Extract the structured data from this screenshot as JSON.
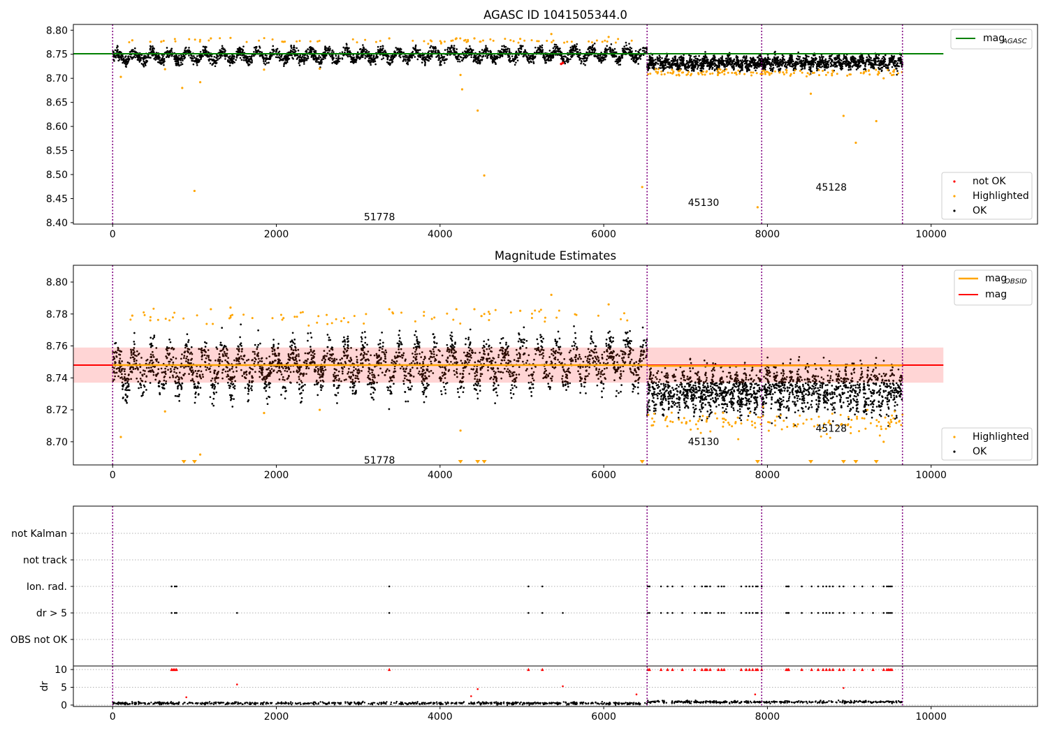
{
  "figure": {
    "title_top": "AGASC ID 1041505344.0",
    "title_middle": "Magnitude Estimates"
  },
  "chart_data": [
    {
      "type": "scatter",
      "title": "AGASC ID 1041505344.0",
      "xlabel": "",
      "ylabel": "",
      "xlim": [
        -480,
        11300
      ],
      "ylim": [
        8.397,
        8.812
      ],
      "xticks": [
        0,
        2000,
        4000,
        6000,
        8000,
        10000
      ],
      "yticks": [
        8.4,
        8.45,
        8.5,
        8.55,
        8.6,
        8.65,
        8.7,
        8.75,
        8.8
      ],
      "grid": false,
      "reference_line": {
        "name": "mag_AGASC",
        "label": "mag",
        "subscript": "AGASC",
        "y": 8.751,
        "x_range": [
          -480,
          10150
        ],
        "color": "#008000"
      },
      "obs_boundaries": [
        0,
        6530,
        7930,
        9650
      ],
      "obs_labels": [
        {
          "text": "51778",
          "x": 3260,
          "y": 8.412
        },
        {
          "text": "45130",
          "x": 7220,
          "y": 8.442
        },
        {
          "text": "45128",
          "x": 8780,
          "y": 8.474
        }
      ],
      "legend": {
        "position": "lower-right",
        "entries": [
          {
            "label": "not OK",
            "color": "#ff0000"
          },
          {
            "label": "Highlighted",
            "color": "#ffa500"
          },
          {
            "label": "OK",
            "color": "#000000"
          }
        ]
      },
      "top_legend": {
        "position": "upper-right"
      },
      "series": [
        {
          "name": "OK",
          "color": "#000000",
          "segments": [
            {
              "x_range": [
                0,
                6530
              ],
              "center": 8.745,
              "amp": 0.012,
              "spread": 0.0075,
              "period": 215,
              "n": 2600,
              "trend": 8.5e-07
            },
            {
              "x_range": [
                6530,
                7930
              ],
              "center": 8.732,
              "amp": 0.007,
              "spread": 0.008,
              "period": 95,
              "n": 850,
              "trend": 0
            },
            {
              "x_range": [
                7930,
                9650
              ],
              "center": 8.733,
              "amp": 0.008,
              "spread": 0.008,
              "period": 95,
              "n": 900,
              "trend": 0
            }
          ]
        },
        {
          "name": "Highlighted",
          "color": "#ffa500",
          "points": [
            [
              100,
              8.703
            ],
            [
              850,
              8.68
            ],
            [
              1000,
              8.466
            ],
            [
              1070,
              8.692
            ],
            [
              4250,
              8.707
            ],
            [
              4270,
              8.677
            ],
            [
              4460,
              8.633
            ],
            [
              4540,
              8.498
            ],
            [
              6470,
              8.474
            ],
            [
              7880,
              8.432
            ],
            [
              8530,
              8.668
            ],
            [
              8930,
              8.622
            ],
            [
              9080,
              8.566
            ],
            [
              9330,
              8.611
            ],
            [
              9420,
              8.7
            ],
            [
              640,
              8.719
            ],
            [
              1850,
              8.718
            ],
            [
              2530,
              8.72
            ],
            [
              3380,
              8.783
            ],
            [
              5360,
              8.792
            ],
            [
              6060,
              8.786
            ],
            [
              240,
              8.779
            ],
            [
              460,
              8.776
            ],
            [
              1200,
              8.783
            ],
            [
              1440,
              8.784
            ],
            [
              4200,
              8.783
            ],
            [
              4420,
              8.783
            ],
            [
              4980,
              8.782
            ]
          ],
          "lower_band": [
            {
              "x_range": [
                6530,
                9650
              ],
              "y_center": 8.712,
              "n": 130,
              "spread": 0.006
            }
          ],
          "upper_band": [
            {
              "x_range": [
                200,
                6400
              ],
              "y_center": 8.778,
              "n": 75,
              "spread": 0.004
            }
          ]
        },
        {
          "name": "not OK",
          "color": "#ff0000",
          "points": [
            [
              5480,
              8.73
            ],
            [
              5500,
              8.732
            ]
          ]
        }
      ]
    },
    {
      "type": "scatter",
      "title": "Magnitude Estimates",
      "xlabel": "",
      "ylabel": "",
      "xlim": [
        -480,
        11300
      ],
      "ylim": [
        8.6855,
        8.8105
      ],
      "xticks": [
        0,
        2000,
        4000,
        6000,
        8000,
        10000
      ],
      "yticks": [
        8.7,
        8.72,
        8.74,
        8.76,
        8.78,
        8.8
      ],
      "grid": false,
      "mag_line": {
        "name": "mag",
        "y": 8.748,
        "x_range": [
          -480,
          10150
        ],
        "color": "#ff0000",
        "band": [
          8.737,
          8.759
        ]
      },
      "mag_obsid": [
        {
          "name": "mag_OBSID",
          "x_range": [
            0,
            6530
          ],
          "y": 8.748
        },
        {
          "name": "mag_OBSID",
          "x_range": [
            6530,
            7930
          ],
          "y": 8.7475
        },
        {
          "name": "mag_OBSID",
          "x_range": [
            7930,
            9650
          ],
          "y": 8.7478
        }
      ],
      "obs_boundaries": [
        0,
        6530,
        7930,
        9650
      ],
      "obs_labels": [
        {
          "text": "51778",
          "x": 3260,
          "y": 8.6885
        },
        {
          "text": "45130",
          "x": 7220,
          "y": 8.7002
        },
        {
          "text": "45128",
          "x": 8780,
          "y": 8.7085
        }
      ],
      "legend_top": {
        "position": "upper-right",
        "entries": [
          {
            "label": "mag",
            "subscript": "OBSID",
            "color": "#ffa500"
          },
          {
            "label": "mag",
            "subscript": "",
            "color": "#ff0000"
          }
        ]
      },
      "legend_bottom": {
        "position": "lower-right",
        "entries": [
          {
            "label": "Highlighted",
            "color": "#ffa500"
          },
          {
            "label": "OK",
            "color": "#000000"
          }
        ]
      },
      "clipped_markers_x": [
        870,
        1000,
        4250,
        4460,
        4540,
        6470,
        7880,
        8530,
        8930,
        9080,
        9330
      ]
    },
    {
      "type": "scatter",
      "title": "",
      "xlabel": "",
      "xlim": [
        -480,
        11300
      ],
      "xticks": [
        0,
        2000,
        4000,
        6000,
        8000,
        10000
      ],
      "flag_rows": [
        "not Kalman",
        "not track",
        "Ion. rad.",
        "dr > 5",
        "OBS not OK"
      ],
      "flag_points": {
        "Ion. rad.": [
          720,
          760,
          780,
          3380,
          5080,
          5250,
          6540,
          6560,
          6700,
          6780,
          6840,
          6960,
          7110,
          7200,
          7240,
          7260,
          7300,
          7400,
          7440,
          7470,
          7680,
          7740,
          7780,
          7820,
          7860,
          7880,
          7930,
          8230,
          8250,
          8260,
          8420,
          8540,
          8620,
          8680,
          8720,
          8760,
          8800,
          8880,
          8930,
          9060,
          9160,
          9290,
          9420,
          9460,
          9480,
          9500,
          9520
        ],
        "dr > 5": [
          720,
          760,
          780,
          1520,
          3380,
          5080,
          5250,
          5500,
          6540,
          6560,
          6700,
          6780,
          6840,
          6960,
          7110,
          7200,
          7240,
          7260,
          7300,
          7400,
          7440,
          7470,
          7680,
          7740,
          7780,
          7820,
          7860,
          7880,
          7930,
          8230,
          8250,
          8260,
          8420,
          8540,
          8620,
          8680,
          8720,
          8760,
          8800,
          8880,
          8930,
          9060,
          9160,
          9290,
          9420,
          9460,
          9480,
          9500,
          9520
        ]
      },
      "dr_panel": {
        "ylabel": "dr",
        "yticks": [
          0,
          5,
          10
        ],
        "ylim": [
          -0.4,
          11.0
        ],
        "clip_value": 10,
        "baseline": {
          "x_range": [
            0,
            9650
          ],
          "mean": 0.5,
          "spread": 0.25,
          "n": 1100
        },
        "clipped_x": [
          720,
          740,
          760,
          780,
          3380,
          5080,
          5250,
          6540,
          6560,
          6700,
          6780,
          6840,
          6960,
          7110,
          7200,
          7240,
          7260,
          7300,
          7400,
          7440,
          7470,
          7680,
          7740,
          7780,
          7820,
          7860,
          7880,
          7930,
          8230,
          8250,
          8260,
          8420,
          8540,
          8620,
          8680,
          8720,
          8760,
          8800,
          8880,
          8930,
          9060,
          9160,
          9290,
          9420,
          9460,
          9480,
          9500,
          9520
        ],
        "outliers": [
          [
            1520,
            5.8
          ],
          [
            4460,
            4.5
          ],
          [
            5500,
            5.3
          ],
          [
            6400,
            3.0
          ],
          [
            7850,
            3.0
          ],
          [
            8930,
            4.8
          ],
          [
            900,
            2.2
          ],
          [
            4380,
            2.5
          ]
        ]
      }
    }
  ]
}
